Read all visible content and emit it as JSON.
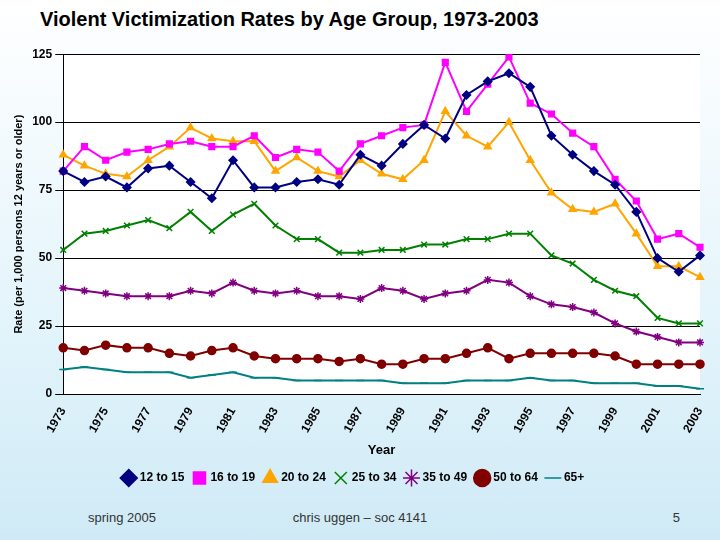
{
  "chart_data": {
    "type": "line",
    "title": "Violent Victimization Rates by Age Group, 1973-2003",
    "y_label": "Rate (per 1,000 persons 12 years or older)",
    "x_label": "Year",
    "categories": [
      "1973",
      null,
      "1975",
      null,
      "1977",
      null,
      "1979",
      null,
      "1981",
      null,
      "1983",
      null,
      "1985",
      null,
      "1987",
      null,
      "1989",
      null,
      "1991",
      null,
      "1993",
      null,
      "1995",
      null,
      "1997",
      null,
      "1999",
      null,
      "2001",
      null,
      "2003"
    ],
    "series": [
      {
        "name": "12 to 15",
        "color": "#000080",
        "marker": "diamond",
        "values": [
          82,
          78,
          80,
          76,
          83,
          84,
          78,
          72,
          86,
          76,
          76,
          78,
          79,
          77,
          88,
          84,
          92,
          99,
          94,
          110,
          115,
          118,
          113,
          95,
          88,
          82,
          77,
          67,
          50,
          45,
          51
        ]
      },
      {
        "name": "16 to 19",
        "color": "#ff00ff",
        "marker": "square",
        "values": [
          82,
          91,
          86,
          89,
          90,
          92,
          93,
          91,
          91,
          95,
          87,
          90,
          89,
          82,
          92,
          95,
          98,
          99,
          122,
          104,
          114,
          124,
          107,
          103,
          96,
          91,
          79,
          71,
          57,
          59,
          54
        ]
      },
      {
        "name": "20 to 24",
        "color": "#ffa500",
        "marker": "triangle",
        "values": [
          88,
          84,
          81,
          80,
          86,
          91,
          98,
          94,
          93,
          93,
          82,
          87,
          82,
          80,
          86,
          81,
          79,
          86,
          104,
          95,
          91,
          100,
          86,
          74,
          68,
          67,
          70,
          59,
          47,
          47,
          43
        ]
      },
      {
        "name": "25 to 34",
        "color": "#008000",
        "marker": "x",
        "values": [
          53,
          59,
          60,
          62,
          64,
          61,
          67,
          60,
          66,
          70,
          62,
          57,
          57,
          52,
          52,
          53,
          53,
          55,
          55,
          57,
          57,
          59,
          59,
          51,
          48,
          42,
          38,
          36,
          28,
          26,
          26
        ]
      },
      {
        "name": "35 to 49",
        "color": "#800080",
        "marker": "star",
        "values": [
          39,
          38,
          37,
          36,
          36,
          36,
          38,
          37,
          41,
          38,
          37,
          38,
          36,
          36,
          35,
          39,
          38,
          35,
          37,
          38,
          42,
          41,
          36,
          33,
          32,
          30,
          26,
          23,
          21,
          19,
          19
        ]
      },
      {
        "name": "50 to 64",
        "color": "#800000",
        "marker": "circle",
        "values": [
          17,
          16,
          18,
          17,
          17,
          15,
          14,
          16,
          17,
          14,
          13,
          13,
          13,
          12,
          13,
          11,
          11,
          13,
          13,
          15,
          17,
          13,
          15,
          15,
          15,
          15,
          14,
          11,
          11,
          11,
          11
        ]
      },
      {
        "name": "65+",
        "color": "#008080",
        "marker": "dash",
        "values": [
          9,
          10,
          9,
          8,
          8,
          8,
          6,
          7,
          8,
          6,
          6,
          5,
          5,
          5,
          5,
          5,
          4,
          4,
          4,
          5,
          5,
          5,
          6,
          5,
          5,
          4,
          4,
          4,
          3,
          3,
          2
        ]
      }
    ],
    "ylim": [
      0,
      125
    ],
    "yticks": [
      0,
      25,
      50,
      75,
      100,
      125
    ],
    "grid": true,
    "legend": "bottom"
  },
  "footer": {
    "left": "spring 2005",
    "center": "chris uggen – soc 4141",
    "right": "5"
  }
}
